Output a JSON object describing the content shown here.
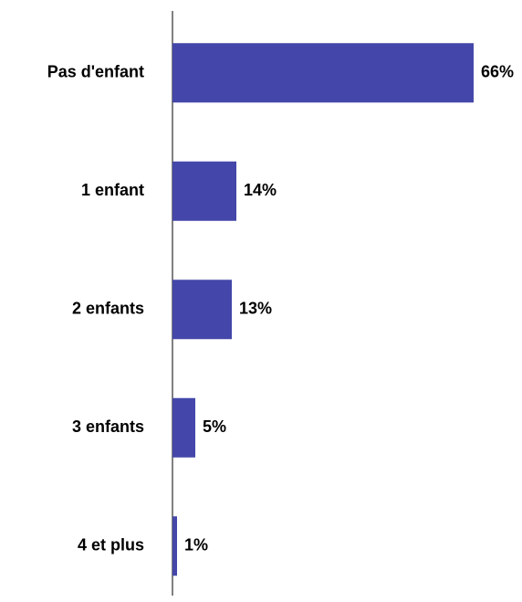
{
  "chart_data": {
    "type": "hbar",
    "categories": [
      "Pas d'enfant",
      "1 enfant",
      "2 enfants",
      "3 enfants",
      "4 et plus"
    ],
    "values": [
      66,
      14,
      13,
      5,
      1
    ],
    "value_labels": [
      "66%",
      "14%",
      "13%",
      "5%",
      "1%"
    ],
    "color": "#4447a9",
    "xlim": [
      0,
      70
    ]
  }
}
